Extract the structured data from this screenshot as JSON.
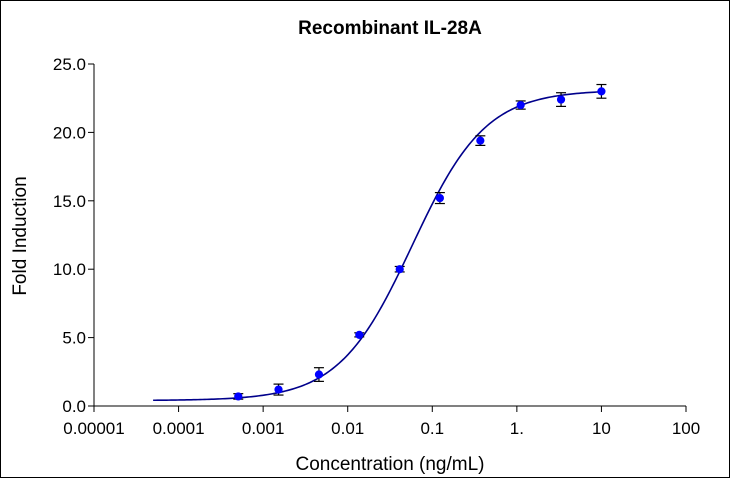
{
  "chart_data": {
    "type": "scatter",
    "title": "Recombinant IL-28A",
    "xlabel": "Concentration (ng/mL)",
    "ylabel": "Fold Induction",
    "x_scale": "log",
    "xlim": [
      1e-05,
      100
    ],
    "ylim": [
      0,
      25
    ],
    "x_ticks": [
      {
        "value": 1e-05,
        "label": "0.00001"
      },
      {
        "value": 0.0001,
        "label": "0.0001"
      },
      {
        "value": 0.001,
        "label": "0.001"
      },
      {
        "value": 0.01,
        "label": "0.01"
      },
      {
        "value": 0.1,
        "label": "0.1"
      },
      {
        "value": 1,
        "label": "1."
      },
      {
        "value": 10,
        "label": "10"
      },
      {
        "value": 100,
        "label": "100"
      }
    ],
    "y_ticks": [
      {
        "value": 0,
        "label": "0.0"
      },
      {
        "value": 5,
        "label": "5.0"
      },
      {
        "value": 10,
        "label": "10.0"
      },
      {
        "value": 15,
        "label": "15.0"
      },
      {
        "value": 20,
        "label": "20.0"
      },
      {
        "value": 25,
        "label": "25.0"
      }
    ],
    "grid": false,
    "colors": {
      "series": "#0000ff",
      "fit": "#00008b",
      "errorbar": "#000000"
    },
    "points": [
      {
        "x": 0.000508,
        "y": 0.7,
        "err": 0.2
      },
      {
        "x": 0.00152,
        "y": 1.2,
        "err": 0.4
      },
      {
        "x": 0.00457,
        "y": 2.3,
        "err": 0.5
      },
      {
        "x": 0.0137,
        "y": 5.2,
        "err": 0.15
      },
      {
        "x": 0.0412,
        "y": 10.0,
        "err": 0.2
      },
      {
        "x": 0.123,
        "y": 15.2,
        "err": 0.4
      },
      {
        "x": 0.37,
        "y": 19.4,
        "err": 0.35
      },
      {
        "x": 1.11,
        "y": 22.0,
        "err": 0.3
      },
      {
        "x": 3.33,
        "y": 22.4,
        "err": 0.5
      },
      {
        "x": 10,
        "y": 23.0,
        "err": 0.5
      }
    ],
    "fit_curve": {
      "model": "4PL",
      "bottom": 0.4,
      "top": 23.1,
      "ec50": 0.058,
      "hill": 1.0,
      "x_range": [
        5e-05,
        10
      ]
    }
  }
}
